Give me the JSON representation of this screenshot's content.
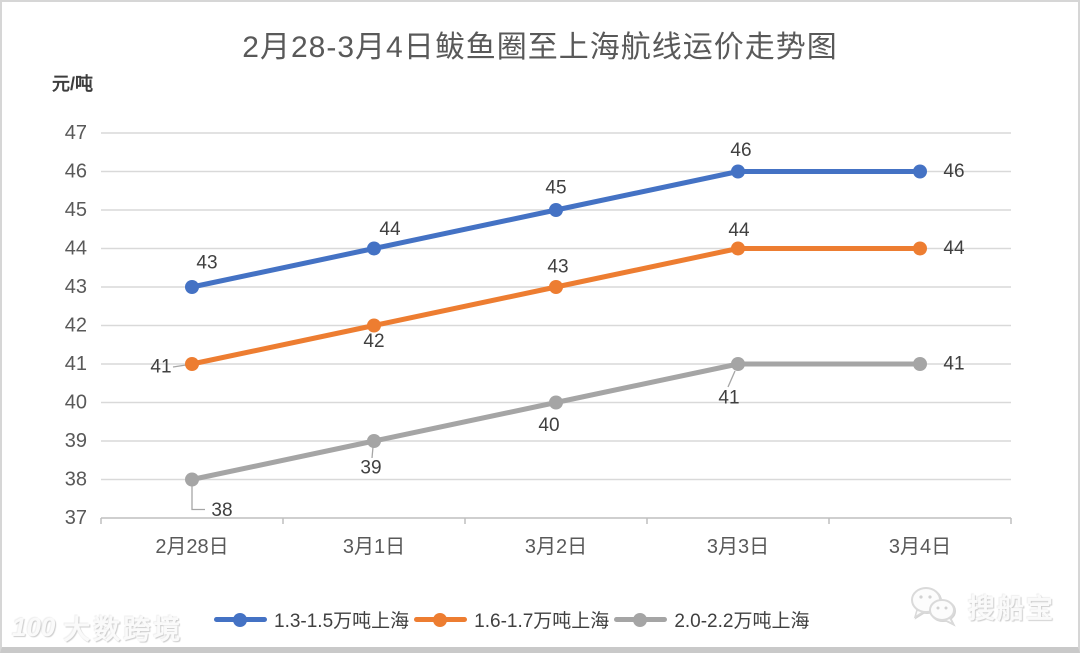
{
  "title": "2月28-3月4日鲅鱼圈至上海航线运价走势图",
  "y_unit": "元/吨",
  "chart_data": {
    "type": "line",
    "categories": [
      "2月28日",
      "3月1日",
      "3月2日",
      "3月3日",
      "3月4日"
    ],
    "ylim": [
      37,
      47
    ],
    "yticks": [
      37,
      38,
      39,
      40,
      41,
      42,
      43,
      44,
      45,
      46,
      47
    ],
    "grid": true,
    "legend_position": "bottom",
    "series": [
      {
        "name": "1.3-1.5万吨上海",
        "color": "#4472C4",
        "values": [
          43,
          44,
          45,
          46,
          46
        ],
        "label_offsets": [
          [
            15,
            -24
          ],
          [
            16,
            -19
          ],
          [
            0,
            -22
          ],
          [
            3,
            -21
          ],
          [
            34,
            0
          ]
        ],
        "leaders": []
      },
      {
        "name": "1.6-1.7万吨上海",
        "color": "#ED7D31",
        "values": [
          41,
          42,
          43,
          44,
          44
        ],
        "label_offsets": [
          [
            -31,
            3
          ],
          [
            0,
            16
          ],
          [
            2,
            -20
          ],
          [
            1,
            -18
          ],
          [
            34,
            0
          ]
        ],
        "leaders": [
          {
            "point": 0,
            "path": [
              [
                -19,
                3
              ],
              [
                -6,
                1
              ]
            ]
          }
        ]
      },
      {
        "name": "2.0-2.2万吨上海",
        "color": "#A5A5A5",
        "values": [
          38,
          39,
          40,
          41,
          41
        ],
        "label_offsets": [
          [
            30,
            31
          ],
          [
            -3,
            27
          ],
          [
            -7,
            23
          ],
          [
            -9,
            34
          ],
          [
            34,
            0
          ]
        ],
        "leaders": [
          {
            "point": 0,
            "path": [
              [
                0,
                6
              ],
              [
                0,
                30
              ],
              [
                13,
                30
              ]
            ]
          },
          {
            "point": 1,
            "path": [
              [
                -1,
                6
              ],
              [
                -2,
                17
              ]
            ]
          },
          {
            "point": 3,
            "path": [
              [
                -3,
                7
              ],
              [
                -10,
                23
              ]
            ]
          }
        ]
      }
    ]
  },
  "watermarks": {
    "left_logo": "100",
    "left": "大数跨境",
    "right": "搜船宝"
  },
  "colors": {
    "grid": "#D9D9D9",
    "axis": "#BFBFBF",
    "tick_label": "#595959",
    "data_label": "#404040",
    "leader": "#A6A6A6",
    "title": "#595959"
  }
}
